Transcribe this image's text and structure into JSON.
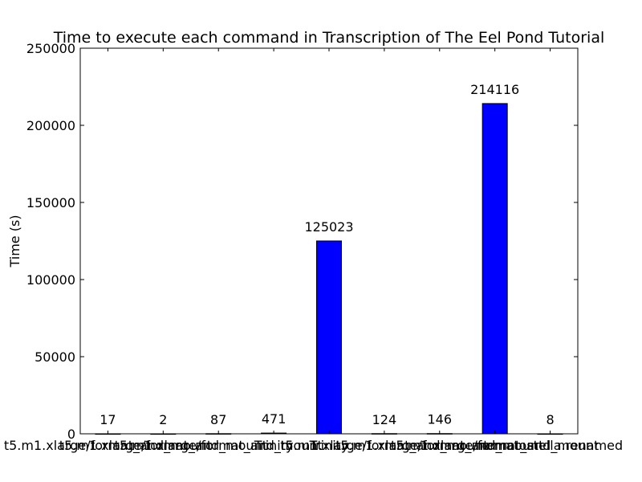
{
  "chart_data": {
    "type": "bar",
    "title": "Time to execute each command in Transcription of The Eel Pond Tutorial",
    "xlabel": "",
    "ylabel": "Time (s)",
    "ylim": [
      0,
      250000
    ],
    "yticks": [
      "0",
      "50000",
      "100000",
      "150000",
      "200000",
      "250000"
    ],
    "categories": [
      "t5.m1.xlarge/format_and_mount",
      "t5.m1.xlarge/format_and_mount",
      "t5.m1.xlarge/format_and_mount",
      "Trinity",
      "Trinity",
      "t5.m1.xlarge/format_and_mount",
      "t5.m1.xlarge/format_and_mount",
      "t5.m1.xlarge/format_and_mount",
      "nematostella.renamed"
    ],
    "values": [
      17,
      2,
      87,
      471,
      125023,
      124,
      146,
      214116,
      8
    ],
    "data_labels": [
      "17",
      "2",
      "87",
      "471",
      "125023",
      "124",
      "146",
      "214116",
      "8"
    ],
    "bar_color": "#0000ff",
    "grid": false,
    "legend": "none"
  }
}
